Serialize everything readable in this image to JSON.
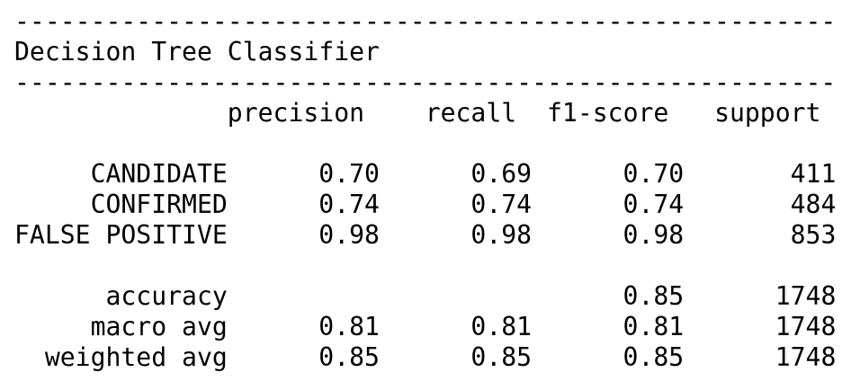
{
  "report": {
    "rule_top": "------------------------------------------------------",
    "title": "Decision Tree Classifier",
    "rule_bottom": "------------------------------------------------------",
    "columns": [
      "precision",
      "recall",
      "f1-score",
      "support"
    ],
    "class_rows": [
      {
        "label": "CANDIDATE",
        "precision": "0.70",
        "recall": "0.69",
        "f1": "0.70",
        "support": "411"
      },
      {
        "label": "CONFIRMED",
        "precision": "0.74",
        "recall": "0.74",
        "f1": "0.74",
        "support": "484"
      },
      {
        "label": "FALSE POSITIVE",
        "precision": "0.98",
        "recall": "0.98",
        "f1": "0.98",
        "support": "853"
      }
    ],
    "summary_rows": [
      {
        "label": "accuracy",
        "precision": "",
        "recall": "",
        "f1": "0.85",
        "support": "1748"
      },
      {
        "label": "macro avg",
        "precision": "0.81",
        "recall": "0.81",
        "f1": "0.81",
        "support": "1748"
      },
      {
        "label": "weighted avg",
        "precision": "0.85",
        "recall": "0.85",
        "f1": "0.85",
        "support": "1748"
      }
    ]
  }
}
